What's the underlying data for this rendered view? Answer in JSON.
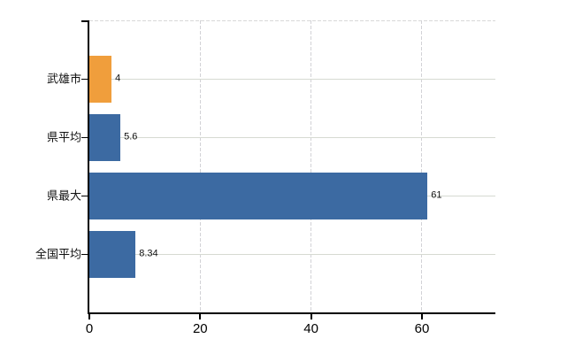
{
  "chart_data": {
    "type": "bar",
    "orientation": "horizontal",
    "title": "",
    "xlabel": "",
    "ylabel": "",
    "categories": [
      "武雄市",
      "県平均",
      "県最大",
      "全国平均"
    ],
    "values": [
      4,
      5.6,
      61,
      8.34
    ],
    "value_labels": [
      "4",
      "5.6",
      "61",
      "8.34"
    ],
    "bar_colors": [
      "#f09e3c",
      "#3c6aa2",
      "#3c6aa2",
      "#3c6aa2"
    ],
    "xlim": [
      0,
      73.25
    ],
    "x_ticks": [
      0,
      20,
      40,
      60
    ],
    "x_tick_labels": [
      "0",
      "20",
      "40",
      "60"
    ],
    "legend": null,
    "grid": {
      "horizontal": "solid",
      "vertical": "dashed",
      "top_border": "dashed"
    },
    "colors": {
      "axis": "#000000",
      "horizontal_grid": "#d6dad2",
      "vertical_grid": "#d2d2d6",
      "top_border": "#d8d8d8",
      "label_text": "#111111",
      "tick_text": "#000000",
      "background": "#ffffff"
    }
  }
}
